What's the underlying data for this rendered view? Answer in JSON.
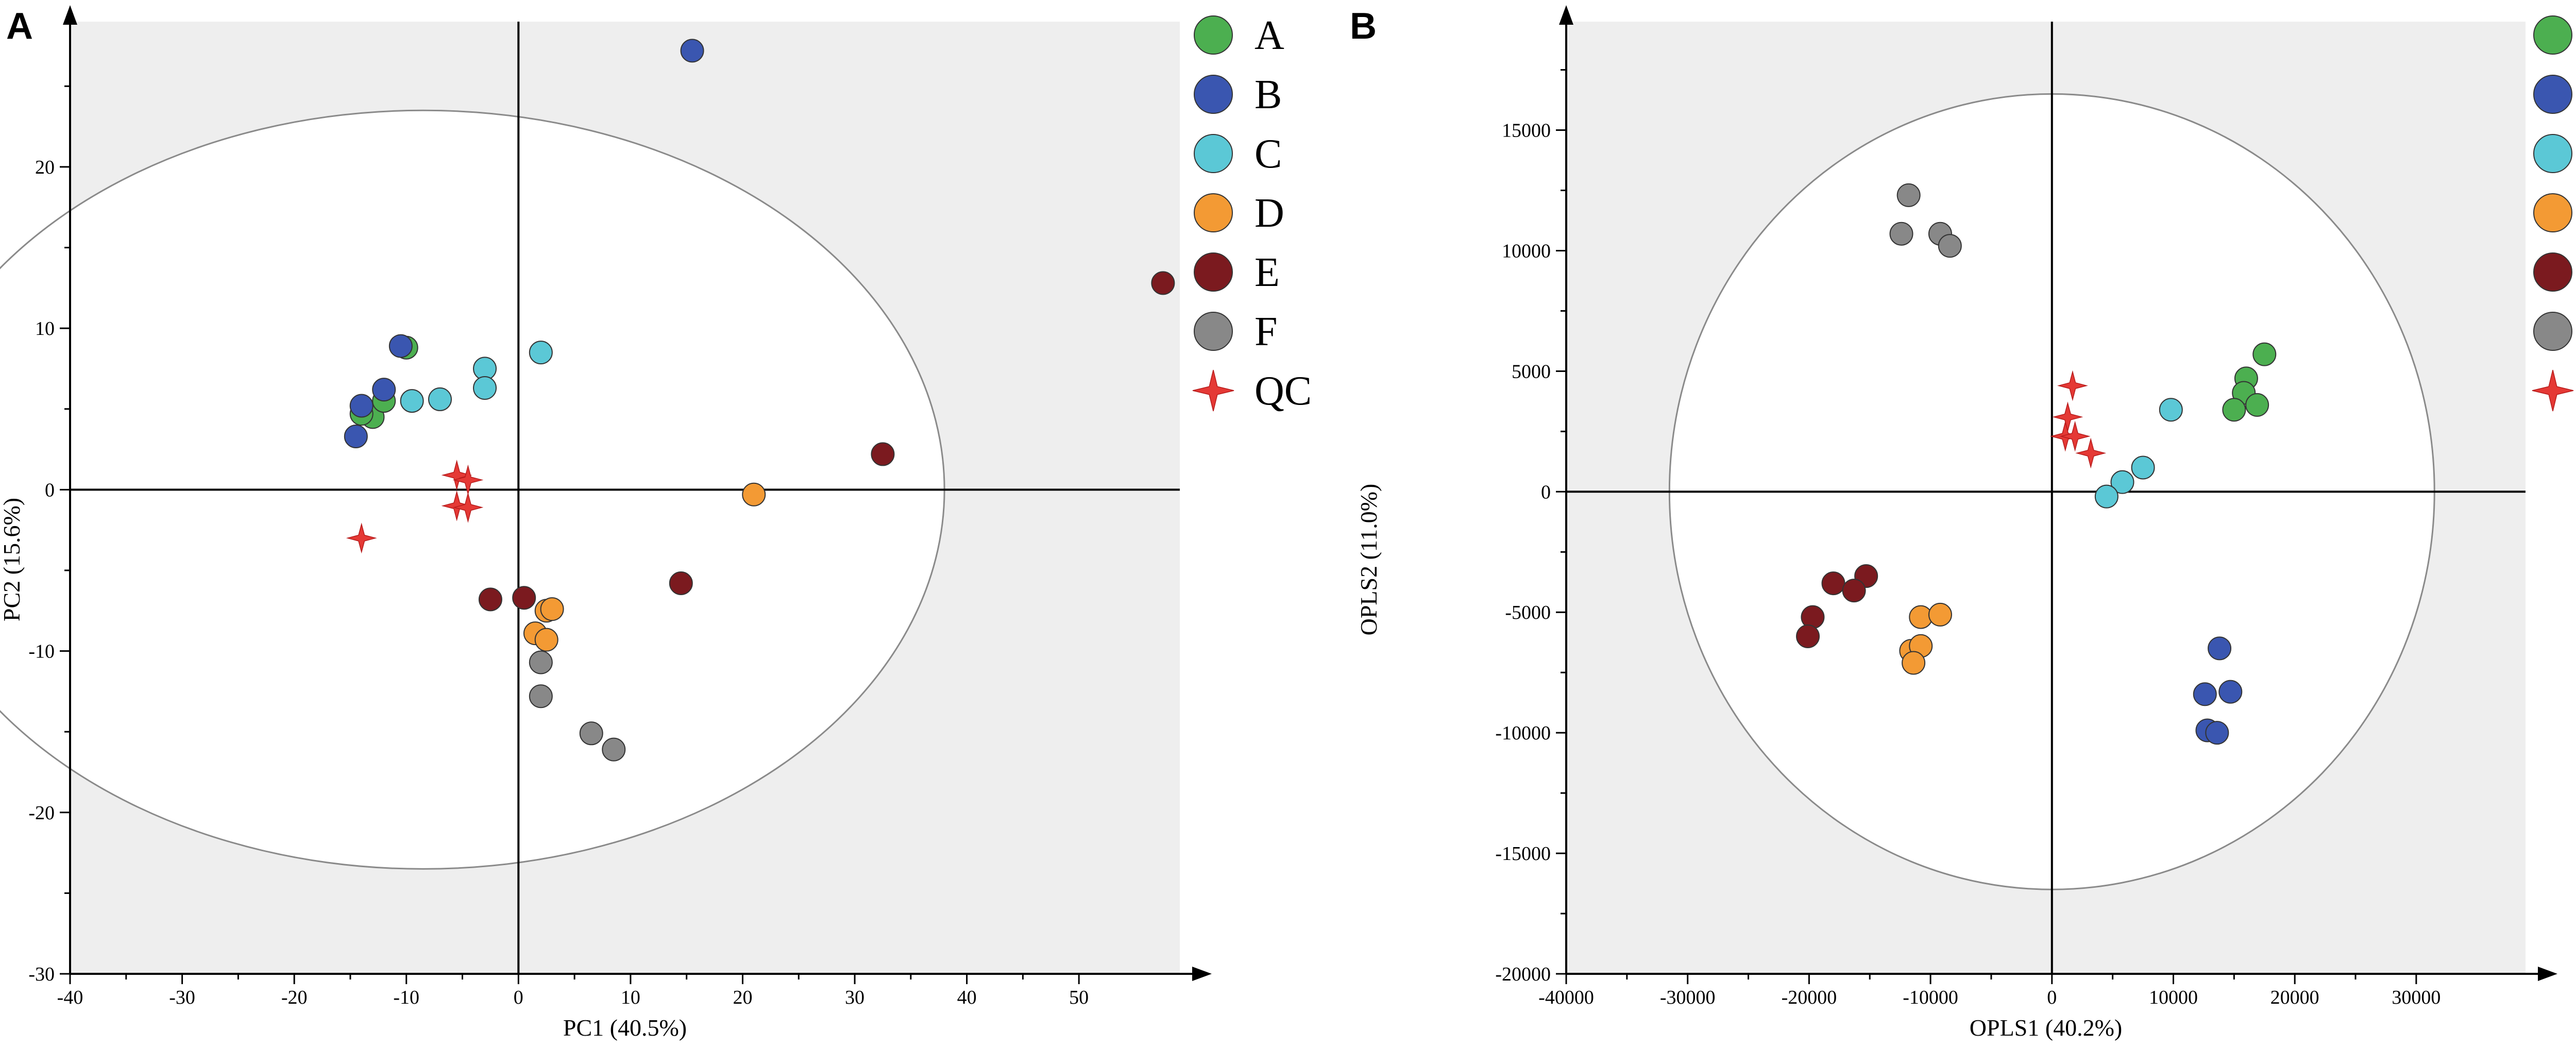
{
  "chart_data": [
    {
      "type": "scatter",
      "panel_label": "A",
      "xlabel": "PC1 (40.5%)",
      "ylabel": "PC2 (15.6%)",
      "xlim": [
        -40,
        59
      ],
      "ylim": [
        -30,
        29
      ],
      "xticks": [
        -40,
        -30,
        -20,
        -10,
        0,
        10,
        20,
        30,
        40,
        50
      ],
      "yticks": [
        -30,
        -20,
        -10,
        0,
        10,
        20
      ],
      "ellipse": {
        "cx": -8.5,
        "cy": 0,
        "rx": 46.5,
        "ry": 23.5
      },
      "grid": false,
      "legend_position": "right",
      "series": [
        {
          "name": "A",
          "color": "#4caf50",
          "marker": "circle",
          "points": [
            [
              -10,
              8.8
            ],
            [
              -13,
              4.5
            ],
            [
              -14,
              4.7
            ],
            [
              -12,
              5.5
            ]
          ]
        },
        {
          "name": "B",
          "color": "#3a56b0",
          "marker": "circle",
          "points": [
            [
              15.5,
              27.2
            ],
            [
              -10.5,
              8.9
            ],
            [
              -12,
              6.2
            ],
            [
              -14,
              5.2
            ],
            [
              -14.5,
              3.3
            ]
          ]
        },
        {
          "name": "C",
          "color": "#5bc8d6",
          "marker": "circle",
          "points": [
            [
              -3,
              7.5
            ],
            [
              -3,
              6.3
            ],
            [
              -7,
              5.6
            ],
            [
              -9.5,
              5.5
            ],
            [
              2,
              8.5
            ]
          ]
        },
        {
          "name": "D",
          "color": "#f39a34",
          "marker": "circle",
          "points": [
            [
              21,
              -0.3
            ],
            [
              2.5,
              -7.5
            ],
            [
              3,
              -7.4
            ],
            [
              1.5,
              -8.9
            ],
            [
              2.5,
              -9.3
            ]
          ]
        },
        {
          "name": "E",
          "color": "#7b1a1f",
          "marker": "circle",
          "points": [
            [
              57.5,
              12.8
            ],
            [
              32.5,
              2.2
            ],
            [
              14.5,
              -5.8
            ],
            [
              -2.5,
              -6.8
            ],
            [
              0.5,
              -6.7
            ]
          ]
        },
        {
          "name": "F",
          "color": "#888888",
          "marker": "circle",
          "points": [
            [
              2,
              -10.7
            ],
            [
              2,
              -12.8
            ],
            [
              6.5,
              -15.1
            ],
            [
              8.5,
              -16.1
            ]
          ]
        },
        {
          "name": "QC",
          "color": "#e53935",
          "marker": "star",
          "points": [
            [
              -5.5,
              0.9
            ],
            [
              -4.5,
              0.6
            ],
            [
              -5.5,
              -1.0
            ],
            [
              -4.5,
              -1.1
            ],
            [
              -14,
              -3.0
            ]
          ]
        }
      ]
    },
    {
      "type": "scatter",
      "panel_label": "B",
      "xlabel": "OPLS1 (40.2%)",
      "ylabel": "OPLS2 (11.0%)",
      "xlim": [
        -40000,
        39000
      ],
      "ylim": [
        -20000,
        19500
      ],
      "xticks": [
        -40000,
        -30000,
        -20000,
        -10000,
        0,
        10000,
        20000,
        30000
      ],
      "yticks": [
        -20000,
        -15000,
        -10000,
        -5000,
        0,
        5000,
        10000,
        15000
      ],
      "ellipse": {
        "cx": 0,
        "cy": 0,
        "rx": 31500,
        "ry": 16500
      },
      "grid": false,
      "legend_position": "right",
      "series": [
        {
          "name": "A",
          "color": "#4caf50",
          "marker": "circle",
          "points": [
            [
              17500,
              5700
            ],
            [
              16000,
              4700
            ],
            [
              15800,
              4100
            ],
            [
              16900,
              3600
            ],
            [
              15000,
              3400
            ]
          ]
        },
        {
          "name": "B",
          "color": "#3a56b0",
          "marker": "circle",
          "points": [
            [
              13800,
              -6500
            ],
            [
              12600,
              -8400
            ],
            [
              14700,
              -8300
            ],
            [
              12800,
              -9900
            ],
            [
              13600,
              -10000
            ]
          ]
        },
        {
          "name": "C",
          "color": "#5bc8d6",
          "marker": "circle",
          "points": [
            [
              9800,
              3400
            ],
            [
              7500,
              1000
            ],
            [
              5800,
              400
            ],
            [
              4500,
              -200
            ]
          ]
        },
        {
          "name": "D",
          "color": "#f39a34",
          "marker": "circle",
          "points": [
            [
              -10800,
              -5200
            ],
            [
              -9200,
              -5100
            ],
            [
              -11600,
              -6600
            ],
            [
              -10800,
              -6400
            ],
            [
              -11400,
              -7100
            ]
          ]
        },
        {
          "name": "E",
          "color": "#7b1a1f",
          "marker": "circle",
          "points": [
            [
              -18000,
              -3800
            ],
            [
              -15300,
              -3500
            ],
            [
              -16300,
              -4100
            ],
            [
              -19700,
              -5200
            ],
            [
              -20100,
              -6000
            ]
          ]
        },
        {
          "name": "F",
          "color": "#888888",
          "marker": "circle",
          "points": [
            [
              -11800,
              12300
            ],
            [
              -12400,
              10700
            ],
            [
              -9200,
              10700
            ],
            [
              -8400,
              10200
            ]
          ]
        },
        {
          "name": "QC",
          "color": "#e53935",
          "marker": "star",
          "points": [
            [
              1700,
              4400
            ],
            [
              1300,
              3100
            ],
            [
              1100,
              2300
            ],
            [
              1900,
              2300
            ],
            [
              3200,
              1600
            ]
          ]
        }
      ]
    }
  ]
}
